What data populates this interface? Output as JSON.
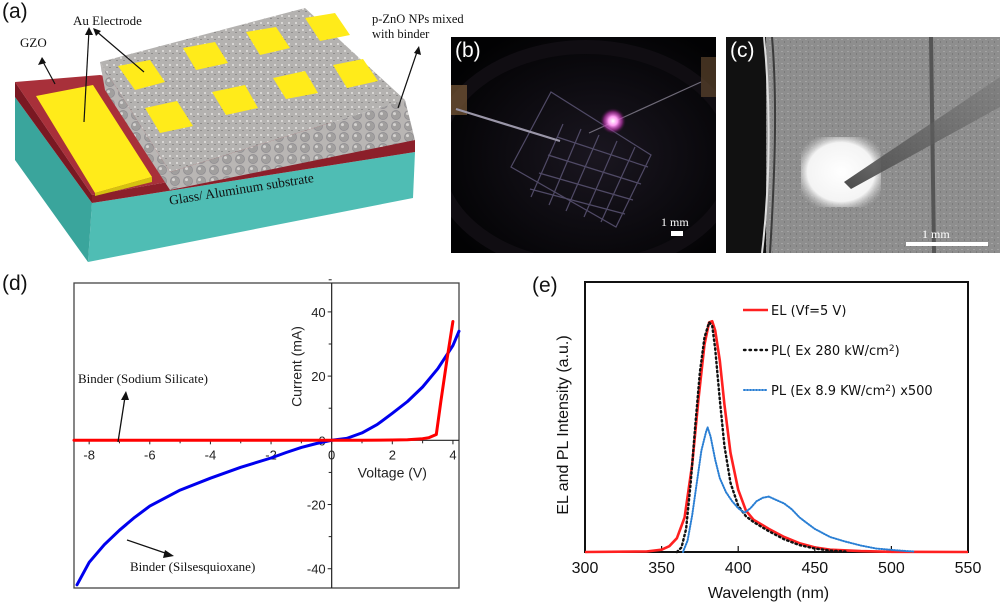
{
  "panel_a": {
    "label": "(a)",
    "annotations": {
      "gzo": "GZO",
      "au_electrode": "Au Electrode",
      "pzno_line1": "p-ZnO NPs mixed",
      "pzno_line2": "with binder",
      "substrate": "Glass/ Aluminum substrate"
    },
    "colors": {
      "substrate": "#4fbdb4",
      "gzo": "#9e2a33",
      "gold": "#ffeb1a",
      "nanoparticles": "#a9a7a6"
    }
  },
  "panel_b": {
    "label": "(b)",
    "scale_bar": "1 mm",
    "colors": {
      "background": "#050406",
      "emission": "#ff66ee"
    }
  },
  "panel_c": {
    "label": "(c)",
    "scale_bar": "1 mm"
  },
  "panel_d": {
    "label": "(d)",
    "annotation_sodium": "Binder (Sodium Silicate)",
    "annotation_silsesquioxane": "Binder (Silsesquioxane)"
  },
  "panel_e": {
    "label": "(e)"
  },
  "chart_data": [
    {
      "id": "d",
      "type": "line",
      "title": "",
      "xlabel": "Voltage (V)",
      "ylabel": "Current (mA)",
      "xlim": [
        -8.5,
        4.2
      ],
      "ylim": [
        -46,
        49
      ],
      "xticks": [
        -8,
        -6,
        -4,
        -2,
        0,
        2,
        4
      ],
      "xtick_labels": [
        "-8",
        "-6",
        "-4",
        "-2",
        "0",
        "2",
        "4"
      ],
      "yticks": [
        -40,
        -20,
        0,
        20,
        40
      ],
      "ytick_labels": [
        "-40",
        "-20",
        "0",
        "20",
        "40"
      ],
      "grid": false,
      "series": [
        {
          "name": "Binder (Sodium Silicate)",
          "color": "#ff0000",
          "x": [
            -8.5,
            -6,
            -4,
            -2,
            0,
            1,
            2,
            2.5,
            3,
            3.2,
            3.45,
            3.6,
            3.8,
            4.0
          ],
          "y": [
            0,
            0,
            0,
            0,
            0,
            0,
            0.1,
            0.2,
            0.5,
            0.8,
            1.8,
            12,
            25,
            37
          ]
        },
        {
          "name": "Binder (Silsesquioxane)",
          "color": "#0000ee",
          "x": [
            -8.4,
            -8,
            -7.5,
            -7,
            -6.5,
            -6,
            -5,
            -4,
            -3,
            -2,
            -1.5,
            -1,
            -0.5,
            0,
            0.5,
            1,
            1.5,
            2,
            2.5,
            3,
            3.5,
            4,
            4.2
          ],
          "y": [
            -45,
            -38,
            -32.5,
            -28,
            -24,
            -20.5,
            -15.5,
            -11.8,
            -8.4,
            -5.5,
            -3.8,
            -2.2,
            -1,
            0,
            0.6,
            2.3,
            4.9,
            8.4,
            12.1,
            16.6,
            22.3,
            29.5,
            34
          ]
        }
      ]
    },
    {
      "id": "e",
      "type": "line",
      "title": "",
      "xlabel": "Wavelength (nm)",
      "ylabel": "EL and PL Intensity (a.u.)",
      "xlim": [
        300,
        550
      ],
      "ylim": [
        0,
        1.17
      ],
      "xticks": [
        300,
        350,
        400,
        450,
        500,
        550
      ],
      "xtick_labels": [
        "300",
        "350",
        "400",
        "450",
        "500",
        "550"
      ],
      "yticks": [],
      "grid": false,
      "legend": "top-right",
      "series": [
        {
          "name": "EL (Vf=5 V)",
          "color": "#ff2020",
          "style": "solid",
          "x": [
            300,
            340,
            350,
            355,
            360,
            365,
            370,
            374,
            378,
            381,
            383,
            385,
            388,
            391,
            395,
            400,
            405,
            410,
            420,
            430,
            440,
            450,
            460,
            480,
            500,
            550
          ],
          "y": [
            0,
            0.002,
            0.01,
            0.025,
            0.06,
            0.15,
            0.38,
            0.66,
            0.9,
            0.995,
            1.0,
            0.96,
            0.83,
            0.64,
            0.43,
            0.27,
            0.18,
            0.14,
            0.1,
            0.065,
            0.038,
            0.02,
            0.01,
            0.004,
            0.001,
            0
          ]
        },
        {
          "name": "PL( Ex 280 kW/cm²)",
          "legend_text": "PL( Ex 280 kW/cm",
          "legend_sup": "2",
          "legend_suffix": ")",
          "color": "#111111",
          "style": "dotted",
          "x": [
            360,
            363,
            366,
            369,
            372,
            375,
            378,
            381,
            383,
            385,
            388,
            391,
            395,
            400,
            405,
            410,
            420,
            430,
            440,
            450,
            460,
            470
          ],
          "y": [
            0,
            0.02,
            0.1,
            0.3,
            0.55,
            0.78,
            0.93,
            0.995,
            0.98,
            0.88,
            0.66,
            0.46,
            0.3,
            0.2,
            0.155,
            0.13,
            0.09,
            0.055,
            0.03,
            0.015,
            0.006,
            0.002
          ]
        },
        {
          "name": "PL (Ex 8.9 KW/cm²) x500",
          "legend_text": "PL (Ex 8.9 KW/cm",
          "legend_sup": "2",
          "legend_suffix": ") x500",
          "color": "#2a7fd4",
          "style": "dotted",
          "x": [
            364,
            367,
            370,
            373,
            376,
            379,
            380,
            382,
            385,
            388,
            392,
            396,
            400,
            404,
            408,
            412,
            416,
            420,
            425,
            430,
            435,
            440,
            445,
            450,
            460,
            470,
            480,
            490,
            500,
            510,
            515
          ],
          "y": [
            0,
            0.05,
            0.16,
            0.3,
            0.44,
            0.52,
            0.54,
            0.5,
            0.4,
            0.32,
            0.26,
            0.22,
            0.19,
            0.17,
            0.19,
            0.22,
            0.235,
            0.24,
            0.225,
            0.21,
            0.185,
            0.15,
            0.125,
            0.1,
            0.065,
            0.045,
            0.028,
            0.015,
            0.009,
            0.004,
            0.002
          ]
        }
      ]
    }
  ]
}
